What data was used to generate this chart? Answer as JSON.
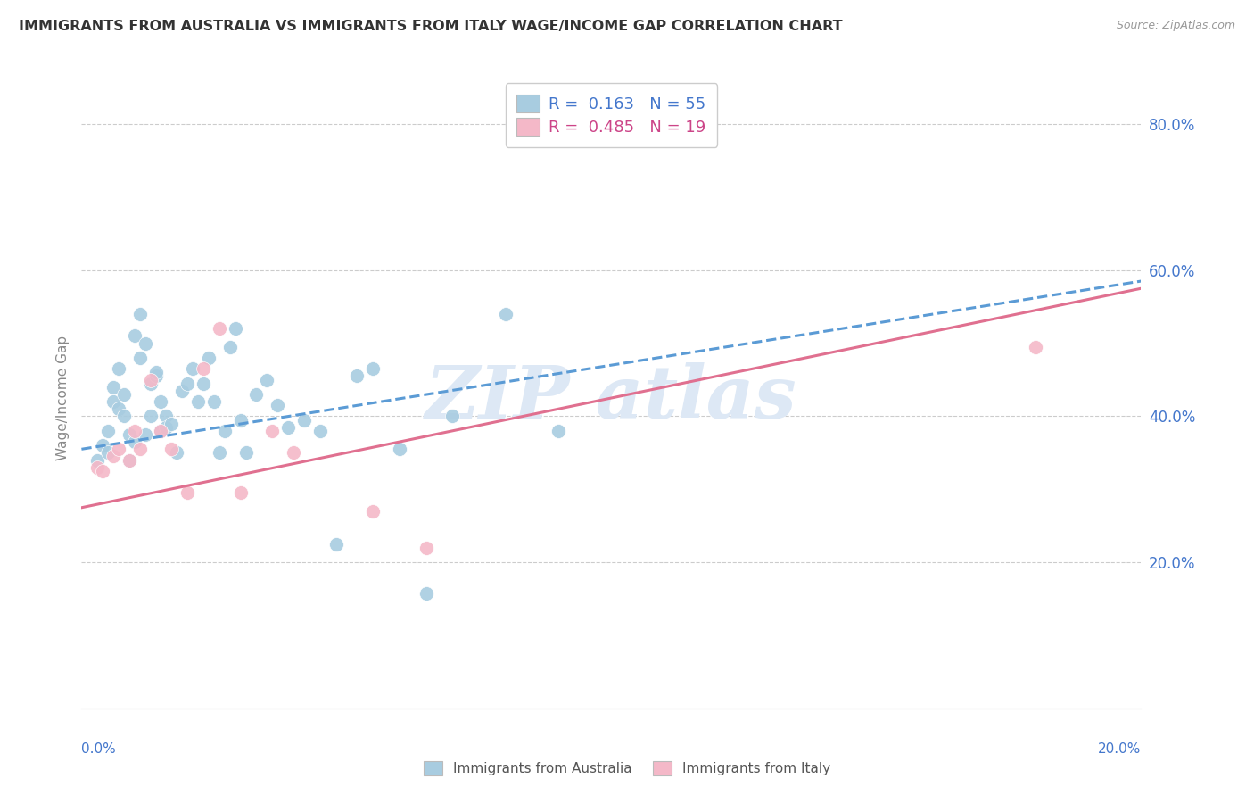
{
  "title": "IMMIGRANTS FROM AUSTRALIA VS IMMIGRANTS FROM ITALY WAGE/INCOME GAP CORRELATION CHART",
  "source": "Source: ZipAtlas.com",
  "ylabel": "Wage/Income Gap",
  "australia_color": "#a8cce0",
  "italy_color": "#f4b8c8",
  "australia_line_color": "#5b9bd5",
  "italy_line_color": "#e07090",
  "background_color": "#ffffff",
  "grid_color": "#cccccc",
  "text_blue": "#4477cc",
  "text_pink": "#cc4488",
  "title_color": "#333333",
  "source_color": "#999999",
  "watermark_color": "#dde8f5",
  "xlim": [
    0.0,
    0.2
  ],
  "ylim": [
    0.0,
    0.85
  ],
  "yticks": [
    0.2,
    0.4,
    0.6,
    0.8
  ],
  "ytick_labels": [
    "20.0%",
    "40.0%",
    "60.0%",
    "80.0%"
  ],
  "legend_line1": "R =  0.163   N = 55",
  "legend_line2": "R =  0.485   N = 19",
  "bottom_legend1": "Immigrants from Australia",
  "bottom_legend2": "Immigrants from Italy",
  "aus_x": [
    0.003,
    0.004,
    0.005,
    0.005,
    0.006,
    0.006,
    0.007,
    0.007,
    0.008,
    0.008,
    0.009,
    0.009,
    0.01,
    0.01,
    0.011,
    0.011,
    0.012,
    0.012,
    0.013,
    0.013,
    0.014,
    0.014,
    0.015,
    0.015,
    0.016,
    0.016,
    0.017,
    0.018,
    0.019,
    0.02,
    0.021,
    0.022,
    0.023,
    0.024,
    0.025,
    0.026,
    0.027,
    0.028,
    0.029,
    0.03,
    0.031,
    0.033,
    0.035,
    0.037,
    0.039,
    0.042,
    0.045,
    0.048,
    0.052,
    0.055,
    0.06,
    0.065,
    0.07,
    0.08,
    0.09
  ],
  "aus_y": [
    0.34,
    0.36,
    0.38,
    0.35,
    0.42,
    0.44,
    0.41,
    0.465,
    0.4,
    0.43,
    0.375,
    0.34,
    0.365,
    0.51,
    0.54,
    0.48,
    0.5,
    0.375,
    0.4,
    0.445,
    0.455,
    0.46,
    0.42,
    0.38,
    0.4,
    0.385,
    0.39,
    0.35,
    0.435,
    0.445,
    0.465,
    0.42,
    0.445,
    0.48,
    0.42,
    0.35,
    0.38,
    0.495,
    0.52,
    0.395,
    0.35,
    0.43,
    0.45,
    0.415,
    0.385,
    0.395,
    0.38,
    0.225,
    0.455,
    0.465,
    0.355,
    0.158,
    0.4,
    0.54,
    0.38
  ],
  "ita_x": [
    0.003,
    0.004,
    0.006,
    0.007,
    0.009,
    0.01,
    0.011,
    0.013,
    0.015,
    0.017,
    0.02,
    0.023,
    0.026,
    0.03,
    0.036,
    0.04,
    0.055,
    0.065,
    0.18
  ],
  "ita_y": [
    0.33,
    0.325,
    0.345,
    0.355,
    0.34,
    0.38,
    0.355,
    0.45,
    0.38,
    0.355,
    0.295,
    0.465,
    0.52,
    0.295,
    0.38,
    0.35,
    0.27,
    0.22,
    0.495
  ],
  "aus_line_x": [
    0.0,
    0.2
  ],
  "aus_line_y": [
    0.355,
    0.585
  ],
  "ita_line_x": [
    0.0,
    0.2
  ],
  "ita_line_y": [
    0.275,
    0.575
  ]
}
